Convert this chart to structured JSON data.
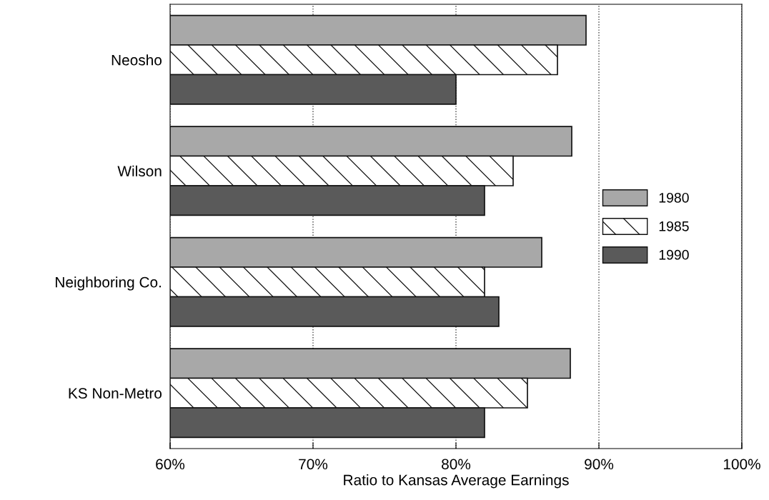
{
  "chart_data": {
    "type": "bar",
    "orientation": "horizontal",
    "xlabel": "Ratio to Kansas Average Earnings",
    "categories": [
      "Neosho",
      "Wilson",
      "Neighboring Co.",
      "KS Non-Metro"
    ],
    "series": [
      {
        "name": "1980",
        "color": "#a8a8a8",
        "values": [
          89.1,
          88.1,
          86.0,
          88.0
        ]
      },
      {
        "name": "1985",
        "color": "#ffffff",
        "values": [
          87.1,
          84.0,
          82.0,
          85.0
        ]
      },
      {
        "name": "1990",
        "color": "#5a5a5a",
        "values": [
          80.0,
          82.0,
          83.0,
          82.0
        ]
      }
    ],
    "xlim": [
      60,
      100
    ],
    "xticks": [
      {
        "value": 60,
        "label": "60%"
      },
      {
        "value": 70,
        "label": "70%"
      },
      {
        "value": 80,
        "label": "80%"
      },
      {
        "value": 90,
        "label": "90%"
      },
      {
        "value": 100,
        "label": "100%"
      }
    ],
    "grid": "x",
    "legend": "right"
  }
}
